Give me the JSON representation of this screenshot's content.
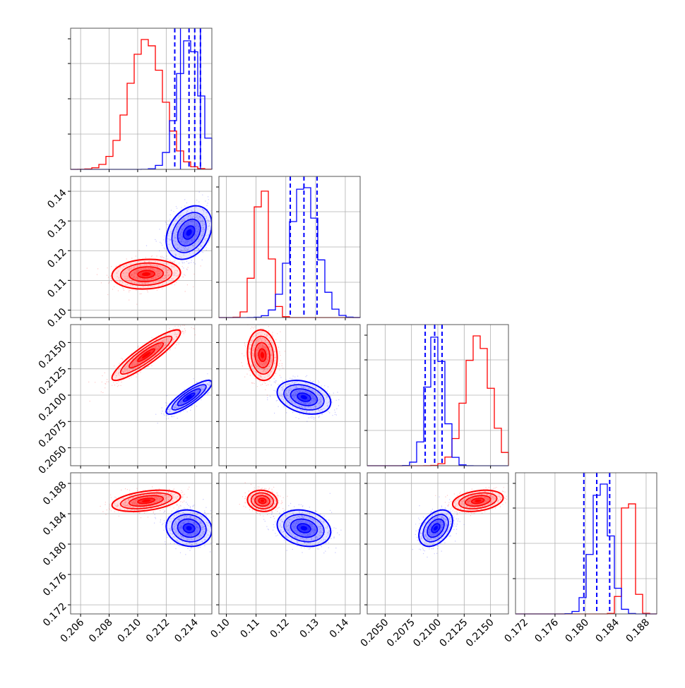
{
  "colors": {
    "red": "#ff0000",
    "blue": "#0000ff",
    "grid": "#b0b0b0",
    "frame": "#555555"
  },
  "chart_data": {
    "type": "corner",
    "grid": true,
    "params": [
      {
        "range": [
          0.2053,
          0.2152
        ],
        "ticks": [
          "0.206",
          "0.208",
          "0.210",
          "0.212",
          "0.214"
        ]
      },
      {
        "range": [
          0.0975,
          0.145
        ],
        "ticks": [
          "0.10",
          "0.11",
          "0.12",
          "0.13",
          "0.14"
        ]
      },
      {
        "range": [
          0.2033,
          0.2167
        ],
        "ticks": [
          "0.2050",
          "0.2075",
          "0.2100",
          "0.2125",
          "0.2150"
        ]
      },
      {
        "range": [
          0.1708,
          0.1894
        ],
        "ticks": [
          "0.172",
          "0.176",
          "0.180",
          "0.184",
          "0.188"
        ]
      }
    ],
    "series": [
      {
        "color": "red",
        "mean": [
          0.2106,
          0.1121,
          0.2138,
          0.1857
        ],
        "std": [
          0.0012,
          0.0025,
          0.0012,
          0.0007
        ],
        "corr": [
          [
            1,
            0.1,
            0.9,
            0.4
          ],
          [
            0.1,
            1,
            -0.1,
            -0.1
          ],
          [
            0.9,
            -0.1,
            1,
            0.3
          ],
          [
            0.4,
            -0.1,
            0.3,
            1
          ]
        ]
      },
      {
        "color": "blue",
        "mean": [
          0.2136,
          0.1261,
          0.2098,
          0.1821
        ],
        "std": [
          0.0008,
          0.0045,
          0.0008,
          0.0012
        ],
        "corr": [
          [
            1,
            0.3,
            0.85,
            -0.1
          ],
          [
            0.3,
            1,
            -0.3,
            -0.2
          ],
          [
            0.85,
            -0.3,
            1,
            0.4
          ],
          [
            -0.1,
            -0.2,
            0.4,
            1
          ]
        ]
      }
    ],
    "reference_lines": {
      "color": "blue",
      "values": [
        [
          0.2126,
          0.2136,
          0.214,
          0.2144
        ],
        [
          0.1215,
          0.1261,
          0.1305
        ],
        [
          0.2088,
          0.2097,
          0.2104
        ],
        [
          0.1798,
          0.1815,
          0.1832
        ]
      ],
      "solid": [
        [
          0.213,
          0.2144
        ],
        [],
        [],
        []
      ]
    }
  }
}
